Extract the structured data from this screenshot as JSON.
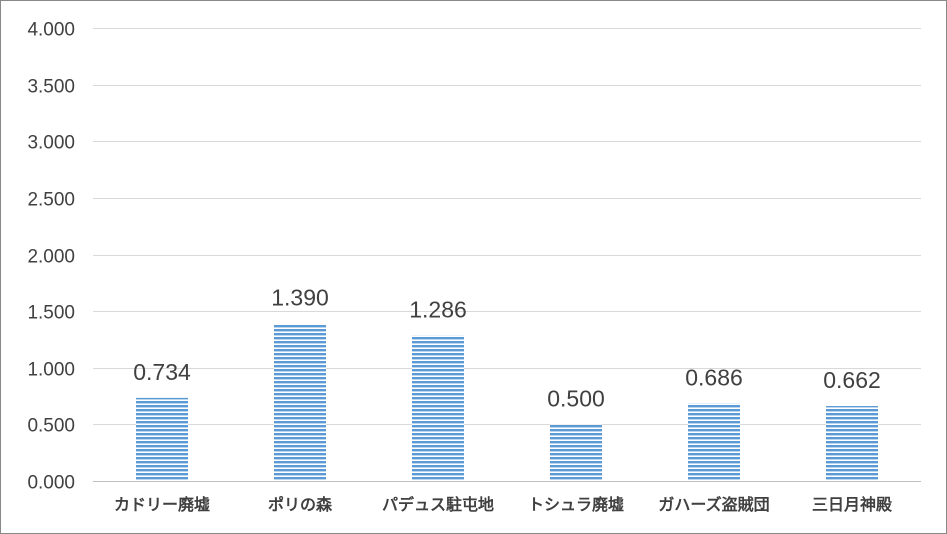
{
  "chart_data": {
    "type": "bar",
    "title": "",
    "xlabel": "",
    "ylabel": "",
    "categories": [
      "カドリー廃墟",
      "ポリの森",
      "パデュス駐屯地",
      "トシュラ廃墟",
      "ガハーズ盗賊団",
      "三日月神殿"
    ],
    "values": [
      0.734,
      1.39,
      1.286,
      0.5,
      0.686,
      0.662
    ],
    "value_labels": [
      "0.734",
      "1.390",
      "1.286",
      "0.500",
      "0.686",
      "0.662"
    ],
    "ylim": [
      0,
      4.0
    ],
    "y_ticks": [
      0,
      0.5,
      1.0,
      1.5,
      2.0,
      2.5,
      3.0,
      3.5,
      4.0
    ],
    "y_tick_labels": [
      "0.000",
      "0.500",
      "1.000",
      "1.500",
      "2.000",
      "2.500",
      "3.000",
      "3.500",
      "4.000"
    ],
    "grid": true,
    "legend": "none",
    "bar_fill": "horizontal-stripes",
    "colors": {
      "bar_stripe": "#5b9bd5",
      "bar_gap": "#ffffff",
      "gridline": "#d9d9d9",
      "axis": "#bfbfbf",
      "text": "#404040",
      "border": "#888888"
    }
  }
}
